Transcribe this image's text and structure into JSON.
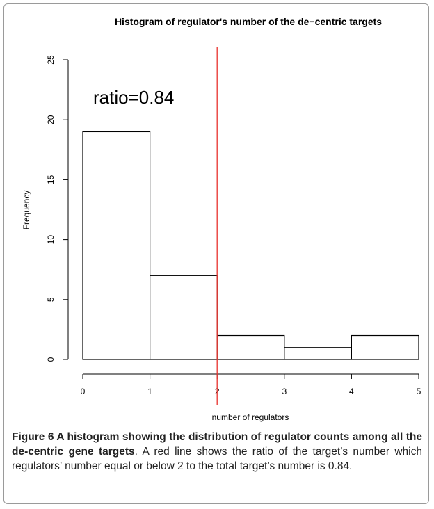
{
  "chart_data": {
    "type": "bar",
    "title": "Histogram of regulator's number of the de−centric targets",
    "xlabel": "number of regulators",
    "ylabel": "Frequency",
    "bins": [
      [
        0,
        1
      ],
      [
        1,
        2
      ],
      [
        2,
        3
      ],
      [
        3,
        4
      ],
      [
        4,
        5
      ]
    ],
    "values": [
      19,
      7,
      2,
      1,
      2
    ],
    "x_ticks": [
      "0",
      "1",
      "2",
      "3",
      "4",
      "5"
    ],
    "y_ticks": [
      "0",
      "5",
      "10",
      "15",
      "20",
      "25"
    ],
    "xlim": [
      0,
      5
    ],
    "ylim": [
      0,
      25
    ],
    "grid": false,
    "reference_line": {
      "x": 2,
      "color": "#e8322c"
    },
    "annotation": "ratio=0.84"
  },
  "caption": {
    "title": "Figure 6 A histogram showing the distribution of regulator counts among all the de-centric gene targets",
    "text": ". A red line shows the ratio of the target’s number which regulators’ number equal or below 2 to the total target’s number is 0.84."
  }
}
